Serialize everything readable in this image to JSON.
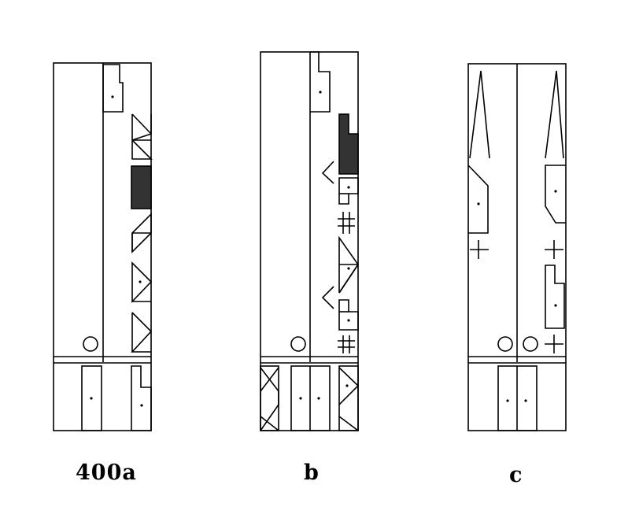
{
  "figure": {
    "labels": {
      "a": "400a",
      "b": "b",
      "c": "c"
    },
    "colors": {
      "ink": "#000000",
      "fill": "#333333",
      "paper": "#ffffff"
    }
  }
}
